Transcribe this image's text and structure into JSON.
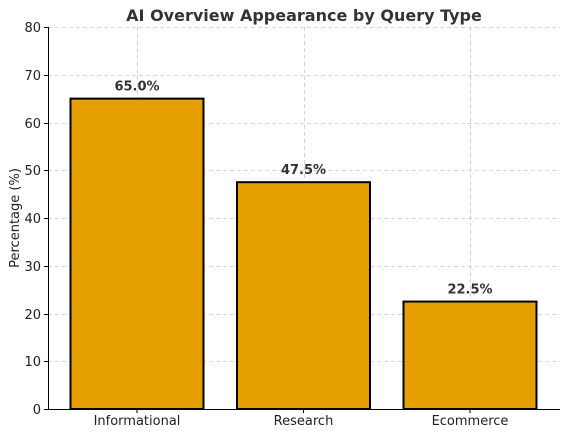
{
  "chart_data": {
    "type": "bar",
    "title": "AI Overview Appearance by Query Type",
    "xlabel": "",
    "ylabel": "Percentage (%)",
    "categories": [
      "Informational",
      "Research",
      "Ecommerce"
    ],
    "values": [
      65.0,
      47.5,
      22.5
    ],
    "data_labels": [
      "65.0%",
      "47.5%",
      "22.5%"
    ],
    "ylim": [
      0,
      80
    ],
    "yticks": [
      0,
      10,
      20,
      30,
      40,
      50,
      60,
      70,
      80
    ],
    "grid": true,
    "legend": "none",
    "colors": {
      "bar_fill": "#E69F00",
      "bar_edge": "#000000"
    }
  }
}
